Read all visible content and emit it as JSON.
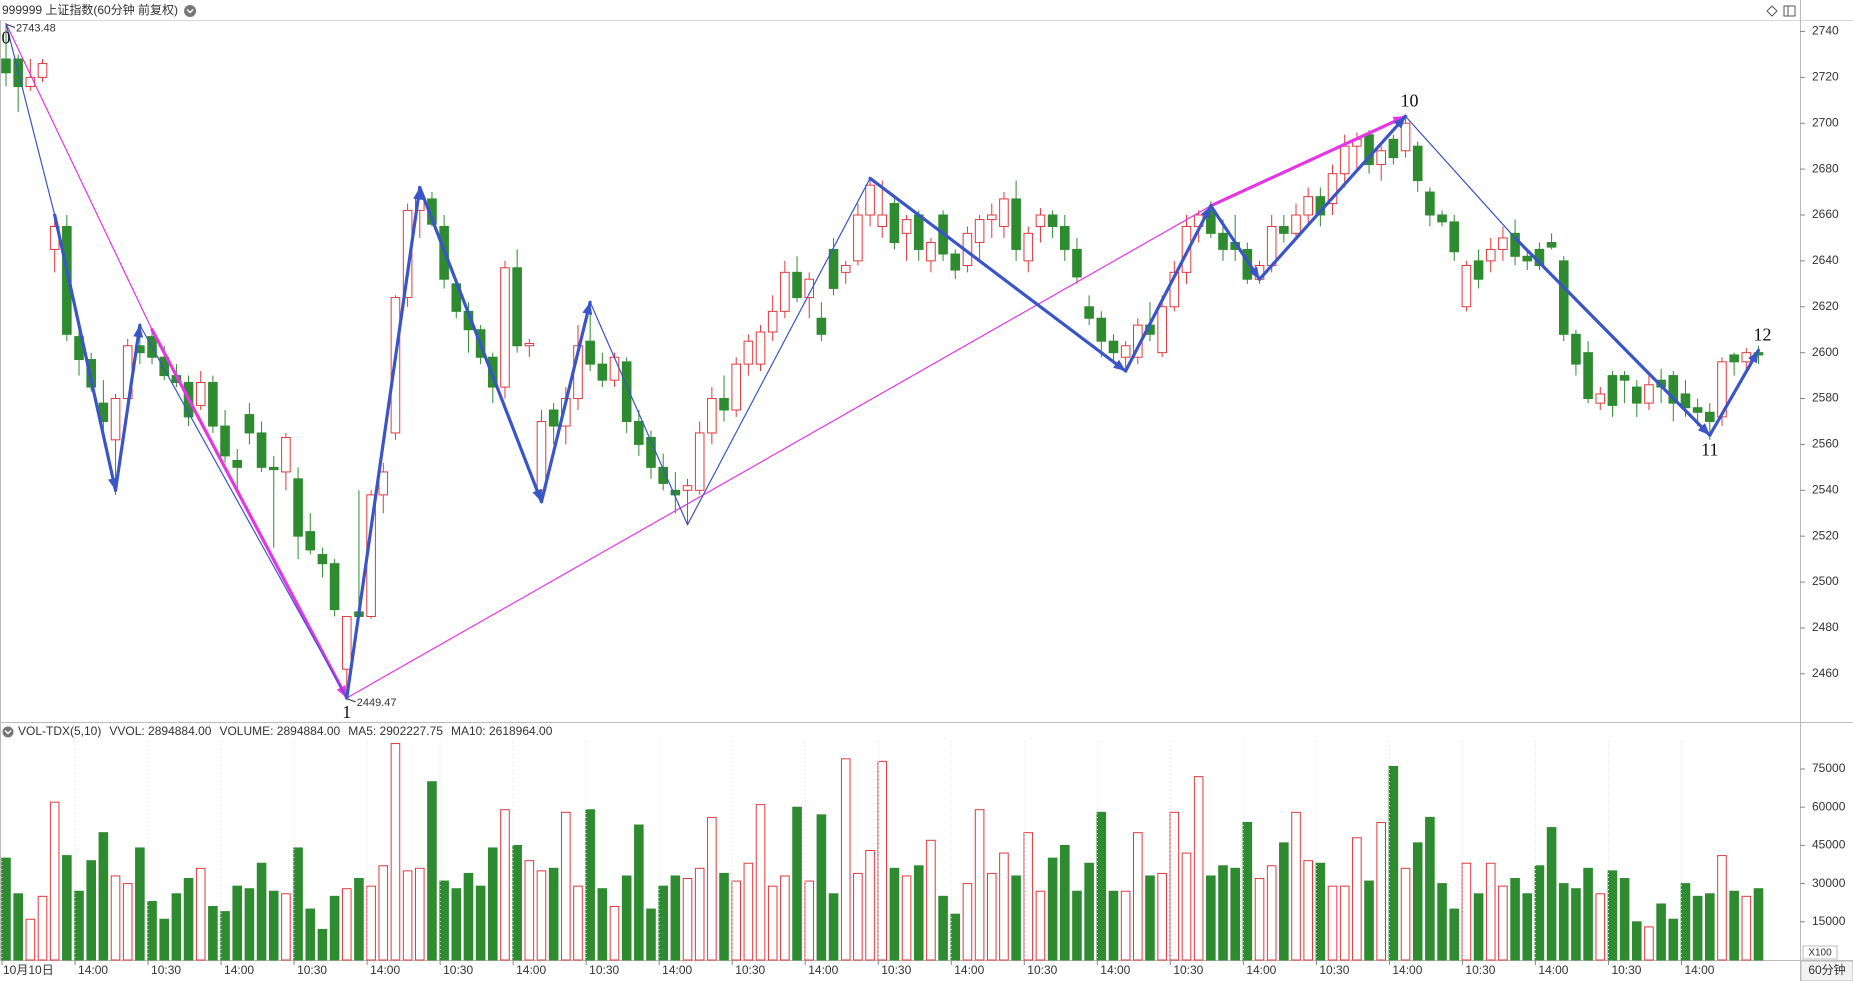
{
  "chart_data": [
    {
      "type": "candlestick",
      "title": "999999 上证指数(60分钟 前复权)",
      "up_color": "#e0393e",
      "down_color": "#2e8b30",
      "categories": [
        "10月10日",
        null,
        null,
        null,
        null,
        null,
        "14:00",
        null,
        null,
        null,
        null,
        null,
        "10:30",
        null,
        null,
        null,
        null,
        null,
        "14:00",
        null,
        null,
        null,
        null,
        null,
        "10:30",
        null,
        null,
        null,
        null,
        null,
        "14:00",
        null,
        null,
        null,
        null,
        null,
        "10:30",
        null,
        null,
        null,
        null,
        null,
        "14:00",
        null,
        null,
        null,
        null,
        null,
        "10:30",
        null,
        null,
        null,
        null,
        null,
        "14:00",
        null,
        null,
        null,
        null,
        null,
        "10:30",
        null,
        null,
        null,
        null,
        null,
        "14:00",
        null,
        null,
        null,
        null,
        null,
        "10:30",
        null,
        null,
        null,
        null,
        null,
        "14:00",
        null,
        null,
        null,
        null,
        null,
        "10:30",
        null,
        null,
        null,
        null,
        null,
        "14:00",
        null,
        null,
        null,
        null,
        null,
        "10:30",
        null,
        null,
        null,
        null,
        null,
        "14:00",
        null,
        null,
        null,
        null,
        null,
        "10:30",
        null,
        null,
        null,
        null,
        null,
        "14:00",
        null,
        null,
        null,
        null,
        null,
        "10:30",
        null,
        null,
        null,
        null,
        null,
        "14:00",
        null,
        null,
        null,
        null,
        null,
        "10:30",
        null,
        null,
        null,
        null,
        null,
        "14:00",
        null,
        null,
        null,
        null,
        null,
        null
      ],
      "open": [
        2728,
        2728,
        2716,
        2720,
        2645,
        2655,
        2607,
        2597,
        2578,
        2562,
        2580,
        2603,
        2607,
        2598,
        2590,
        2587,
        2577,
        2587,
        2568,
        2553,
        2573,
        2565,
        2550,
        2548,
        2545,
        2522,
        2512,
        2508,
        2462,
        2487,
        2485,
        2538,
        2565,
        2624,
        2662,
        2667,
        2655,
        2630,
        2618,
        2610,
        2598,
        2585,
        2637,
        2603,
        2540,
        2575,
        2568,
        2580,
        2605,
        2595,
        2588,
        2596,
        2570,
        2563,
        2550,
        2540,
        2540,
        2540,
        2565,
        2580,
        2575,
        2595,
        2595,
        2609,
        2618,
        2635,
        2624,
        2615,
        2645,
        2635,
        2640,
        2660,
        2655,
        2665,
        2652,
        2660,
        2640,
        2660,
        2643,
        2638,
        2648,
        2658,
        2655,
        2667,
        2640,
        2655,
        2660,
        2655,
        2645,
        2620,
        2615,
        2605,
        2598,
        2598,
        2612,
        2600,
        2620,
        2635,
        2655,
        2662,
        2652,
        2648,
        2645,
        2632,
        2638,
        2655,
        2652,
        2660,
        2668,
        2665,
        2678,
        2690,
        2695,
        2682,
        2693,
        2688,
        2690,
        2670,
        2660,
        2657,
        2620,
        2640,
        2640,
        2645,
        2652,
        2642,
        2645,
        2648,
        2640,
        2608,
        2600,
        2578,
        2590,
        2590,
        2585,
        2578,
        2588,
        2590,
        2582,
        2576,
        2574,
        2572,
        2599,
        2596,
        2600
      ],
      "high": [
        2743.48,
        2730,
        2728,
        2728,
        2660,
        2660,
        2612,
        2600,
        2588,
        2582,
        2606,
        2612,
        2610,
        2603,
        2595,
        2590,
        2592,
        2590,
        2575,
        2558,
        2578,
        2570,
        2555,
        2565,
        2550,
        2530,
        2515,
        2510,
        2485,
        2540,
        2540,
        2552,
        2625,
        2665,
        2672,
        2670,
        2660,
        2632,
        2622,
        2612,
        2600,
        2640,
        2645,
        2606,
        2575,
        2578,
        2585,
        2612,
        2620,
        2600,
        2600,
        2598,
        2575,
        2566,
        2556,
        2548,
        2545,
        2570,
        2585,
        2590,
        2598,
        2608,
        2612,
        2625,
        2640,
        2642,
        2635,
        2622,
        2650,
        2640,
        2665,
        2676,
        2675,
        2668,
        2660,
        2662,
        2650,
        2662,
        2645,
        2655,
        2660,
        2665,
        2670,
        2675,
        2655,
        2663,
        2662,
        2660,
        2650,
        2625,
        2618,
        2608,
        2605,
        2615,
        2622,
        2625,
        2640,
        2660,
        2662,
        2666,
        2658,
        2660,
        2648,
        2640,
        2660,
        2660,
        2665,
        2672,
        2672,
        2682,
        2695,
        2696,
        2697,
        2690,
        2695,
        2703,
        2692,
        2672,
        2662,
        2660,
        2640,
        2645,
        2650,
        2655,
        2658,
        2645,
        2648,
        2652,
        2642,
        2610,
        2605,
        2585,
        2592,
        2592,
        2588,
        2590,
        2593,
        2592,
        2588,
        2580,
        2578,
        2598,
        2600,
        2602,
        2603
      ],
      "low": [
        2716,
        2705,
        2714,
        2718,
        2635,
        2605,
        2590,
        2583,
        2562,
        2538,
        2575,
        2595,
        2595,
        2588,
        2585,
        2568,
        2575,
        2565,
        2552,
        2540,
        2560,
        2548,
        2515,
        2540,
        2510,
        2512,
        2502,
        2485,
        2449.47,
        2484,
        2484,
        2530,
        2562,
        2620,
        2650,
        2655,
        2628,
        2615,
        2600,
        2595,
        2578,
        2580,
        2600,
        2598,
        2535,
        2560,
        2560,
        2575,
        2592,
        2585,
        2585,
        2565,
        2555,
        2545,
        2540,
        2530,
        2525,
        2538,
        2560,
        2570,
        2572,
        2590,
        2592,
        2605,
        2615,
        2622,
        2615,
        2605,
        2625,
        2630,
        2638,
        2655,
        2650,
        2645,
        2640,
        2640,
        2635,
        2640,
        2632,
        2635,
        2640,
        2650,
        2650,
        2640,
        2635,
        2648,
        2650,
        2640,
        2630,
        2612,
        2598,
        2595,
        2593,
        2595,
        2605,
        2598,
        2618,
        2630,
        2648,
        2650,
        2640,
        2640,
        2630,
        2630,
        2635,
        2648,
        2650,
        2655,
        2655,
        2660,
        2672,
        2680,
        2678,
        2675,
        2682,
        2685,
        2670,
        2655,
        2655,
        2640,
        2618,
        2628,
        2635,
        2640,
        2638,
        2636,
        2636,
        2645,
        2605,
        2590,
        2578,
        2575,
        2572,
        2578,
        2572,
        2575,
        2578,
        2570,
        2572,
        2568,
        2562,
        2568,
        2590,
        2592,
        2595
      ],
      "close": [
        2722,
        2716,
        2720,
        2726,
        2655,
        2608,
        2597,
        2585,
        2570,
        2580,
        2603,
        2600,
        2598,
        2590,
        2587,
        2572,
        2587,
        2568,
        2555,
        2550,
        2565,
        2550,
        2549,
        2563,
        2520,
        2514,
        2508,
        2488,
        2485,
        2485,
        2538,
        2548,
        2624,
        2662,
        2668,
        2656,
        2632,
        2618,
        2610,
        2598,
        2585,
        2637,
        2603,
        2604,
        2570,
        2568,
        2580,
        2603,
        2595,
        2588,
        2598,
        2570,
        2560,
        2550,
        2543,
        2538,
        2542,
        2565,
        2580,
        2575,
        2595,
        2605,
        2609,
        2618,
        2635,
        2624,
        2632,
        2608,
        2628,
        2638,
        2660,
        2673,
        2660,
        2648,
        2658,
        2645,
        2648,
        2643,
        2636,
        2652,
        2658,
        2660,
        2667,
        2645,
        2652,
        2660,
        2655,
        2645,
        2633,
        2615,
        2605,
        2600,
        2603,
        2612,
        2608,
        2620,
        2635,
        2655,
        2660,
        2652,
        2645,
        2645,
        2632,
        2638,
        2655,
        2652,
        2660,
        2668,
        2660,
        2678,
        2690,
        2693,
        2682,
        2688,
        2685,
        2700,
        2675,
        2660,
        2657,
        2644,
        2638,
        2632,
        2645,
        2650,
        2642,
        2640,
        2638,
        2646,
        2608,
        2595,
        2580,
        2582,
        2577,
        2588,
        2578,
        2586,
        2585,
        2578,
        2576,
        2574,
        2570,
        2596,
        2596,
        2600,
        2599
      ],
      "ylim": [
        2439,
        2745
      ],
      "yticks": [
        2460,
        2480,
        2500,
        2520,
        2540,
        2560,
        2580,
        2600,
        2620,
        2640,
        2660,
        2680,
        2700,
        2720,
        2740
      ],
      "price_labels": [
        {
          "field": "high",
          "index": 0
        },
        {
          "field": "low",
          "index": 28
        }
      ],
      "wave_labels": [
        {
          "text": "0",
          "index": 0,
          "price": 2743.48,
          "position": "below"
        },
        {
          "text": "1",
          "index": 28,
          "price": 2449.47,
          "position": "below"
        },
        {
          "text": "10",
          "index": 115,
          "price": 2703,
          "position": "above"
        },
        {
          "text": "11",
          "index": 140,
          "price": 2564,
          "position": "below"
        },
        {
          "text": "12",
          "index": 144,
          "price": 2601,
          "position": "above"
        }
      ],
      "wave_lines": [
        {
          "from": [
            0,
            2743.48
          ],
          "to": [
            12,
            2610
          ],
          "color": "#e535e5",
          "bold": false
        },
        {
          "from": [
            12,
            2610
          ],
          "to": [
            28,
            2449.47
          ],
          "color": "#e535e5",
          "bold": true
        },
        {
          "from": [
            28,
            2449.47
          ],
          "to": [
            99,
            2664
          ],
          "color": "#e535e5",
          "bold": false
        },
        {
          "from": [
            99,
            2664
          ],
          "to": [
            115,
            2703
          ],
          "color": "#e535e5",
          "bold": true
        },
        {
          "from": [
            0,
            2743.48
          ],
          "to": [
            4,
            2660
          ],
          "color": "#3a55c8",
          "bold": false
        },
        {
          "from": [
            4,
            2660
          ],
          "to": [
            9,
            2540
          ],
          "color": "#3a55c8",
          "bold": true
        },
        {
          "from": [
            9,
            2540
          ],
          "to": [
            11,
            2612
          ],
          "color": "#3a55c8",
          "bold": true
        },
        {
          "from": [
            11,
            2612
          ],
          "to": [
            28,
            2449.47
          ],
          "color": "#3a55c8",
          "bold": false
        },
        {
          "from": [
            28,
            2449.47
          ],
          "to": [
            34,
            2672
          ],
          "color": "#3a55c8",
          "bold": true
        },
        {
          "from": [
            34,
            2672
          ],
          "to": [
            44,
            2535
          ],
          "color": "#3a55c8",
          "bold": true
        },
        {
          "from": [
            44,
            2535
          ],
          "to": [
            48,
            2622
          ],
          "color": "#3a55c8",
          "bold": true
        },
        {
          "from": [
            48,
            2622
          ],
          "to": [
            56,
            2525
          ],
          "color": "#3a55c8",
          "bold": false
        },
        {
          "from": [
            56,
            2525
          ],
          "to": [
            71,
            2676
          ],
          "color": "#3a55c8",
          "bold": false
        },
        {
          "from": [
            71,
            2676
          ],
          "to": [
            92,
            2592
          ],
          "color": "#3a55c8",
          "bold": true
        },
        {
          "from": [
            92,
            2592
          ],
          "to": [
            99,
            2664
          ],
          "color": "#3a55c8",
          "bold": true
        },
        {
          "from": [
            99,
            2664
          ],
          "to": [
            103,
            2632
          ],
          "color": "#3a55c8",
          "bold": true
        },
        {
          "from": [
            103,
            2632
          ],
          "to": [
            115,
            2703
          ],
          "color": "#3a55c8",
          "bold": true
        },
        {
          "from": [
            115,
            2703
          ],
          "to": [
            124,
            2650
          ],
          "color": "#3a55c8",
          "bold": false
        },
        {
          "from": [
            124,
            2650
          ],
          "to": [
            140,
            2564
          ],
          "color": "#3a55c8",
          "bold": true
        },
        {
          "from": [
            140,
            2564
          ],
          "to": [
            144,
            2601
          ],
          "color": "#3a55c8",
          "bold": true
        }
      ],
      "period": "60分钟"
    },
    {
      "type": "bar",
      "title": "VOL-TDX(5,10)",
      "legend": [
        {
          "text": "VVOL: 2894884.00",
          "color": "#333333"
        },
        {
          "text": "VOLUME: 2894884.00",
          "color": "#1f6fbf"
        },
        {
          "text": "MA5: 2902227.75",
          "color": "#1f6fbf"
        },
        {
          "text": "MA10: 2618964.00",
          "color": "#8b1a6b"
        }
      ],
      "values": [
        40000,
        26000,
        16000,
        25000,
        62000,
        41000,
        27000,
        39000,
        50000,
        33000,
        30000,
        44000,
        23000,
        16000,
        26000,
        32000,
        36000,
        21000,
        19000,
        29000,
        28000,
        38000,
        27000,
        26000,
        44000,
        20000,
        12000,
        25000,
        28000,
        32000,
        29000,
        37000,
        85000,
        35000,
        36000,
        70000,
        31000,
        28000,
        34000,
        29000,
        44000,
        59000,
        45000,
        39000,
        35000,
        36000,
        58000,
        29000,
        59000,
        28000,
        21000,
        33000,
        53000,
        20000,
        29000,
        33000,
        32000,
        36000,
        56000,
        34000,
        31000,
        38000,
        61000,
        29000,
        33000,
        60000,
        31000,
        57000,
        26000,
        79000,
        34000,
        43000,
        78000,
        36000,
        33000,
        37000,
        47000,
        25000,
        18000,
        30000,
        59000,
        34000,
        42000,
        33000,
        50000,
        27000,
        40000,
        45000,
        27000,
        38000,
        58000,
        27000,
        27000,
        50000,
        33000,
        34000,
        58000,
        42000,
        72000,
        33000,
        37000,
        36000,
        54000,
        32000,
        37000,
        46000,
        58000,
        39000,
        38000,
        29000,
        29000,
        48000,
        31000,
        54000,
        76000,
        36000,
        46000,
        56000,
        30000,
        20000,
        38000,
        26000,
        38000,
        29000,
        32000,
        26000,
        37000,
        52000,
        30000,
        28000,
        36000,
        26000,
        35000,
        32000,
        15000,
        13000,
        22000,
        16000,
        30000,
        25000,
        26000,
        41000,
        27000,
        25000,
        28000
      ],
      "ylim": [
        0,
        86000
      ],
      "yticks": [
        15000,
        30000,
        45000,
        60000,
        75000
      ],
      "unit": "X100"
    }
  ]
}
